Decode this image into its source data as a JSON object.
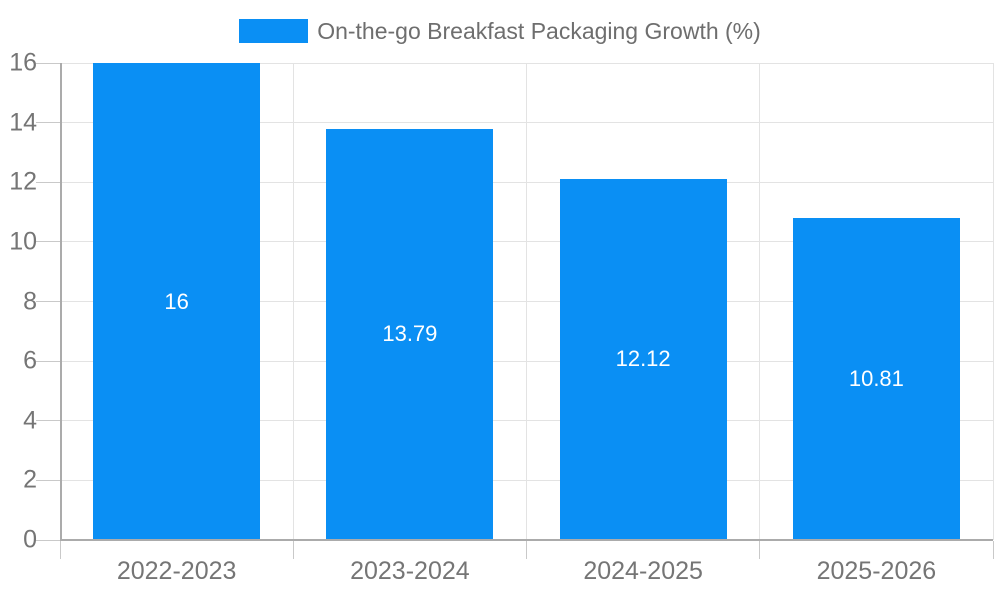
{
  "chart_data": {
    "type": "bar",
    "legend": {
      "label": "On-the-go Breakfast Packaging Growth (%)",
      "position": "top-center"
    },
    "categories": [
      "2022-2023",
      "2023-2024",
      "2024-2025",
      "2025-2026"
    ],
    "series": [
      {
        "name": "On-the-go Breakfast Packaging Growth (%)",
        "values": [
          16,
          13.79,
          12.12,
          10.81
        ],
        "value_labels": [
          "16",
          "13.79",
          "12.12",
          "10.81"
        ]
      }
    ],
    "xlabel": "",
    "ylabel": "",
    "ylim": [
      0,
      16
    ],
    "yticks": [
      0,
      2,
      4,
      6,
      8,
      10,
      12,
      14,
      16
    ],
    "grid": true,
    "value_label_position": "inside-center",
    "colors": {
      "bar": "#0A8FF4",
      "gridline": "#E3E3E3",
      "axis": "#ABABAB",
      "tick": "#C9C9C9",
      "axis_label": "#757575",
      "legend_label": "#6E6E6E",
      "value_label": "#FFFFFF",
      "background": "#FFFFFF"
    }
  }
}
